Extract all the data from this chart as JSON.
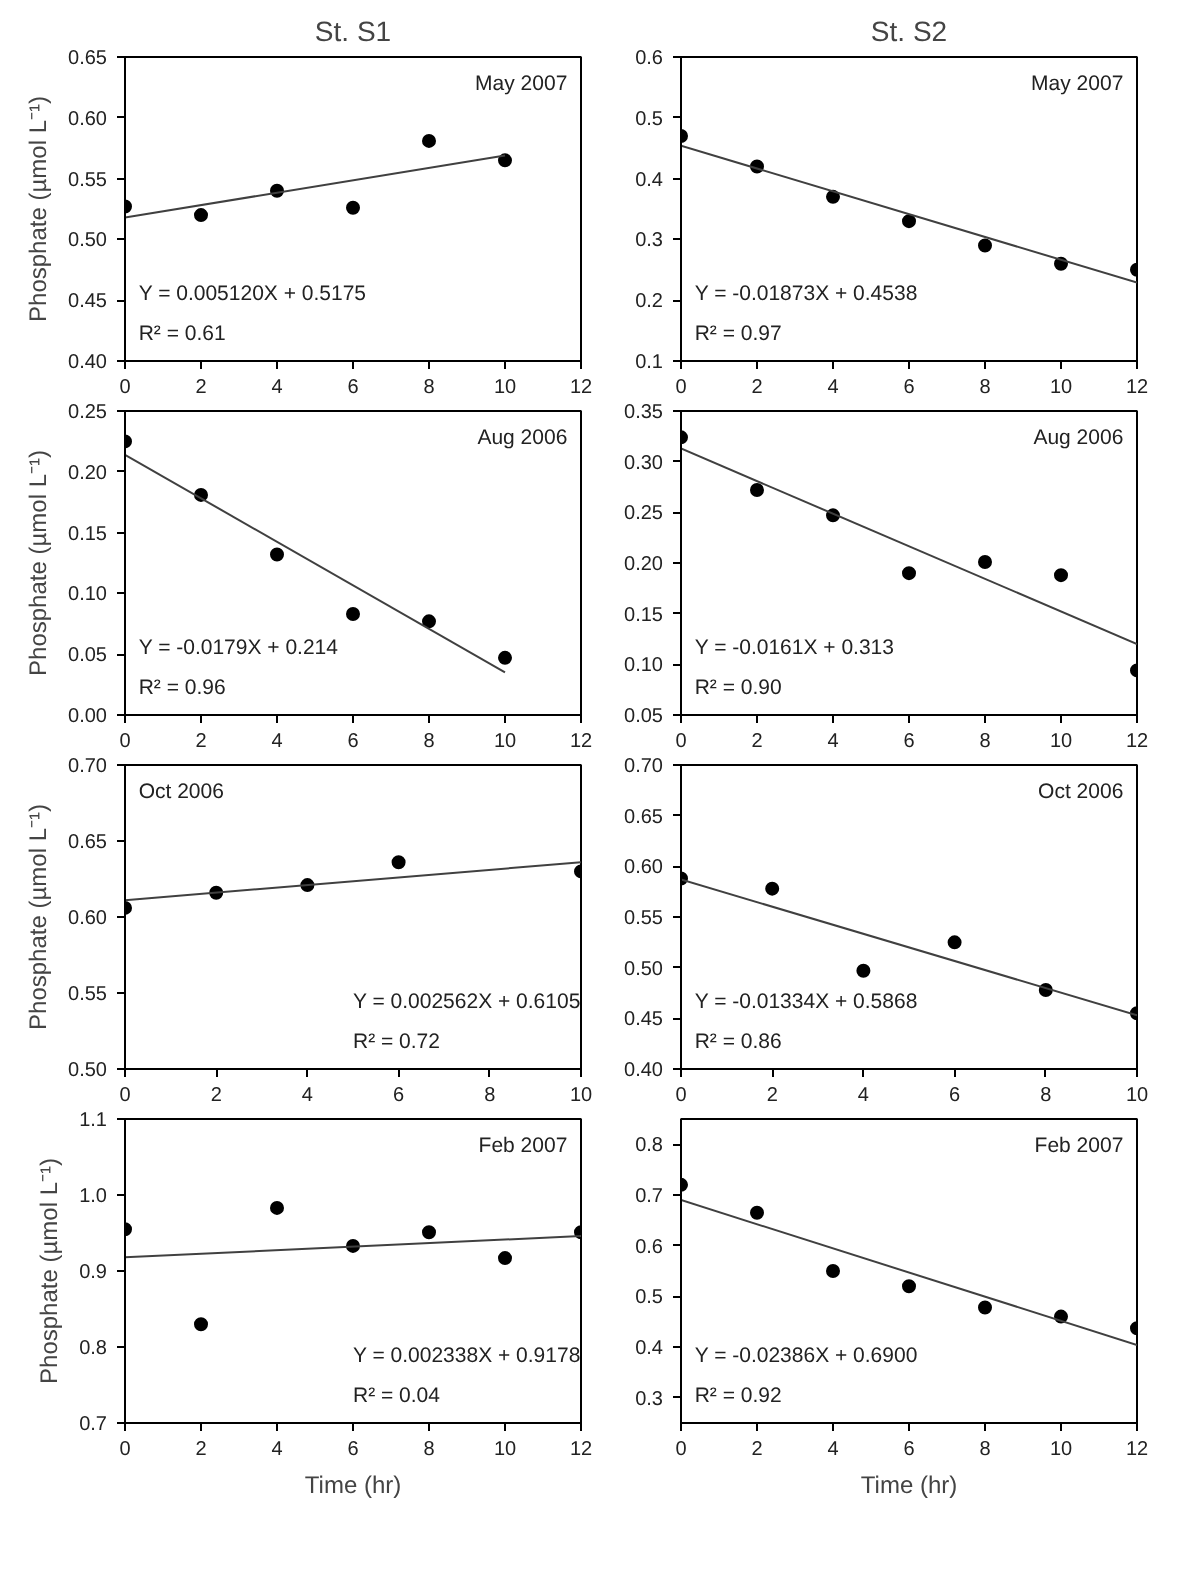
{
  "chart_data": [
    {
      "type": "scatter",
      "title": "St. S1",
      "ylabel": "Phosphate (µmol L⁻¹)",
      "annotations": [
        "May 2007",
        "Y = 0.005120X + 0.5175",
        "R² = 0.61"
      ],
      "xlim": [
        0,
        12
      ],
      "xticks": [
        0,
        2,
        4,
        6,
        8,
        10,
        12
      ],
      "ylim": [
        0.4,
        0.65
      ],
      "yticks": [
        {
          "value": 0.4,
          "label": "0.40"
        },
        0.45,
        {
          "value": 0.5,
          "label": "0.50"
        },
        0.55,
        {
          "value": 0.6,
          "label": "0.60"
        },
        0.65
      ],
      "grid": false,
      "series": [
        {
          "color": "#000000",
          "marker": "circle",
          "x": [
            0,
            2,
            4,
            6,
            8,
            10
          ],
          "values": [
            0.527,
            0.52,
            0.54,
            0.526,
            0.581,
            0.565
          ]
        },
        {
          "type": "line",
          "color": "#404040",
          "x": [
            0,
            10
          ],
          "values": [
            0.518,
            0.569
          ]
        }
      ]
    },
    {
      "type": "scatter",
      "title": "St. S2",
      "annotations": [
        "May 2007",
        "Y = -0.01873X + 0.4538",
        "R² = 0.97"
      ],
      "xlim": [
        0,
        12
      ],
      "xticks": [
        0,
        2,
        4,
        6,
        8,
        10,
        12
      ],
      "ylim": [
        0.1,
        0.6
      ],
      "yticks": [
        0.1,
        0.2,
        0.3,
        0.4,
        0.5,
        0.6
      ],
      "grid": false,
      "series": [
        {
          "color": "#000000",
          "marker": "circle",
          "x": [
            0,
            2,
            4,
            6,
            8,
            10,
            12
          ],
          "values": [
            0.47,
            0.42,
            0.37,
            0.33,
            0.29,
            0.26,
            0.25
          ]
        },
        {
          "type": "line",
          "color": "#404040",
          "x": [
            0,
            12
          ],
          "values": [
            0.454,
            0.229
          ]
        }
      ]
    },
    {
      "type": "scatter",
      "ylabel": "Phosphate (µmol L⁻¹)",
      "annotations": [
        "Aug 2006",
        "Y = -0.0179X + 0.214",
        "R² = 0.96"
      ],
      "xlim": [
        0,
        12
      ],
      "xticks": [
        0,
        2,
        4,
        6,
        8,
        10,
        12
      ],
      "ylim": [
        0,
        0.25
      ],
      "yticks": [
        {
          "value": 0,
          "label": "0.00"
        },
        0.05,
        {
          "value": 0.1,
          "label": "0.10"
        },
        0.15,
        {
          "value": 0.2,
          "label": "0.20"
        },
        0.25
      ],
      "grid": false,
      "series": [
        {
          "color": "#000000",
          "marker": "circle",
          "x": [
            0,
            2,
            4,
            6,
            8,
            10
          ],
          "values": [
            0.225,
            0.181,
            0.132,
            0.083,
            0.077,
            0.047
          ]
        },
        {
          "type": "line",
          "color": "#404040",
          "x": [
            0,
            10
          ],
          "values": [
            0.214,
            0.035
          ]
        }
      ]
    },
    {
      "type": "scatter",
      "annotations": [
        "Aug 2006",
        "Y = -0.0161X + 0.313",
        "R² = 0.90"
      ],
      "xlim": [
        0,
        12
      ],
      "xticks": [
        0,
        2,
        4,
        6,
        8,
        10,
        12
      ],
      "ylim": [
        0.05,
        0.35
      ],
      "yticks": [
        0.05,
        {
          "value": 0.1,
          "label": "0.10"
        },
        0.15,
        {
          "value": 0.2,
          "label": "0.20"
        },
        0.25,
        {
          "value": 0.3,
          "label": "0.30"
        },
        0.35
      ],
      "grid": false,
      "series": [
        {
          "color": "#000000",
          "marker": "circle",
          "x": [
            0,
            2,
            4,
            6,
            8,
            10,
            12
          ],
          "values": [
            0.324,
            0.272,
            0.247,
            0.19,
            0.201,
            0.188,
            0.094
          ]
        },
        {
          "type": "line",
          "color": "#404040",
          "x": [
            0,
            12
          ],
          "values": [
            0.313,
            0.12
          ]
        }
      ]
    },
    {
      "type": "scatter",
      "ylabel": "Phosphate (µmol L⁻¹)",
      "annotations": [
        "Oct 2006",
        "Y = 0.002562X + 0.6105",
        "R² = 0.72"
      ],
      "xlim": [
        0,
        10
      ],
      "xticks": [
        0,
        2,
        4,
        6,
        8,
        10
      ],
      "ylim": [
        0.5,
        0.7
      ],
      "yticks": [
        {
          "value": 0.5,
          "label": "0.50"
        },
        0.55,
        {
          "value": 0.6,
          "label": "0.60"
        },
        0.65,
        {
          "value": 0.7,
          "label": "0.70"
        }
      ],
      "grid": false,
      "series": [
        {
          "color": "#000000",
          "marker": "circle",
          "x": [
            0,
            2,
            4,
            6,
            10
          ],
          "values": [
            0.606,
            0.616,
            0.621,
            0.636,
            0.63
          ]
        },
        {
          "type": "line",
          "color": "#404040",
          "x": [
            0,
            10
          ],
          "values": [
            0.611,
            0.636
          ]
        }
      ]
    },
    {
      "type": "scatter",
      "annotations": [
        "Oct 2006",
        "Y = -0.01334X + 0.5868",
        "R² = 0.86"
      ],
      "xlim": [
        0,
        10
      ],
      "xticks": [
        0,
        2,
        4,
        6,
        8,
        10
      ],
      "ylim": [
        0.4,
        0.7
      ],
      "yticks": [
        {
          "value": 0.4,
          "label": "0.40"
        },
        0.45,
        {
          "value": 0.5,
          "label": "0.50"
        },
        0.55,
        {
          "value": 0.6,
          "label": "0.60"
        },
        0.65,
        {
          "value": 0.7,
          "label": "0.70"
        }
      ],
      "grid": false,
      "series": [
        {
          "color": "#000000",
          "marker": "circle",
          "x": [
            0,
            2,
            4,
            6,
            8,
            10
          ],
          "values": [
            0.588,
            0.578,
            0.497,
            0.525,
            0.478,
            0.455
          ]
        },
        {
          "type": "line",
          "color": "#404040",
          "x": [
            0,
            10
          ],
          "values": [
            0.587,
            0.453
          ]
        }
      ]
    },
    {
      "type": "scatter",
      "ylabel": "Phosphate (µmol L⁻¹)",
      "xlabel": "Time (hr)",
      "annotations": [
        "Feb 2007",
        "Y = 0.002338X +  0.9178",
        "R² = 0.04"
      ],
      "xlim": [
        0,
        12
      ],
      "xticks": [
        0,
        2,
        4,
        6,
        8,
        10,
        12
      ],
      "ylim": [
        0.7,
        1.1
      ],
      "yticks": [
        0.7,
        0.8,
        0.9,
        {
          "value": 1.0,
          "label": "1.0"
        },
        1.1
      ],
      "grid": false,
      "series": [
        {
          "color": "#000000",
          "marker": "circle",
          "x": [
            0,
            2,
            4,
            6,
            8,
            10,
            12
          ],
          "values": [
            0.955,
            0.83,
            0.983,
            0.933,
            0.951,
            0.917,
            0.951
          ]
        },
        {
          "type": "line",
          "color": "#404040",
          "x": [
            0,
            12
          ],
          "values": [
            0.918,
            0.946
          ]
        }
      ]
    },
    {
      "type": "scatter",
      "xlabel": "Time (hr)",
      "annotations": [
        "Feb 2007",
        "Y = -0.02386X + 0.6900",
        "R² = 0.92"
      ],
      "xlim": [
        0,
        12
      ],
      "xticks": [
        0,
        2,
        4,
        6,
        8,
        10,
        12
      ],
      "ylim": [
        0.25,
        0.85
      ],
      "yticks": [
        0.3,
        0.4,
        0.5,
        0.6,
        0.7,
        0.8
      ],
      "grid": false,
      "series": [
        {
          "color": "#000000",
          "marker": "circle",
          "x": [
            0,
            2,
            4,
            6,
            8,
            10,
            12
          ],
          "values": [
            0.72,
            0.665,
            0.55,
            0.52,
            0.478,
            0.46,
            0.437
          ]
        },
        {
          "type": "line",
          "color": "#404040",
          "x": [
            0,
            12
          ],
          "values": [
            0.69,
            0.404
          ]
        }
      ]
    }
  ]
}
